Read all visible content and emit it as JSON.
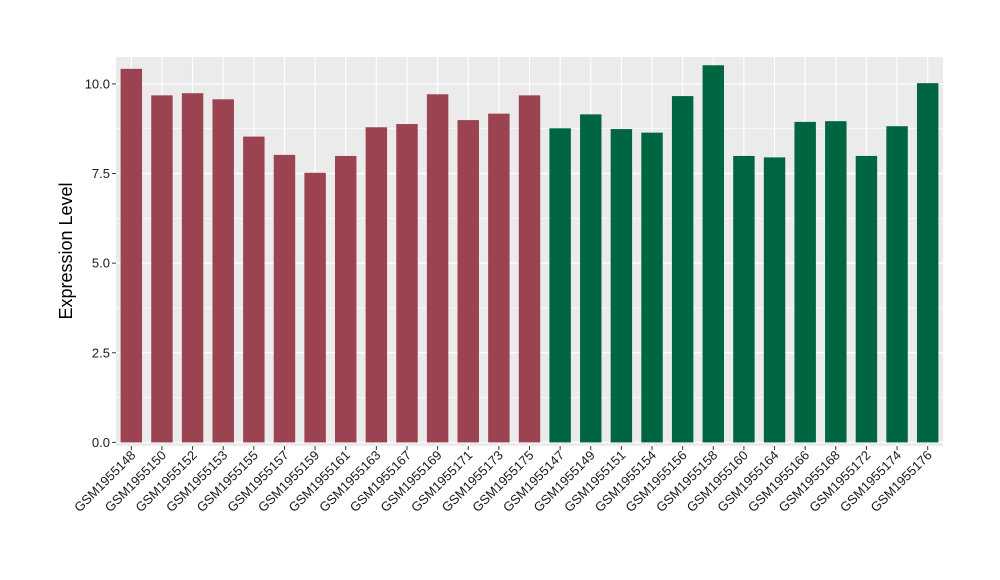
{
  "chart_data": {
    "type": "bar",
    "title": "",
    "xlabel": "",
    "ylabel": "Expression Level",
    "ylim": [
      -0.1,
      10.75
    ],
    "yticks": [
      0.0,
      2.5,
      5.0,
      7.5,
      10.0
    ],
    "ytick_labels": [
      "0.0",
      "2.5",
      "5.0",
      "7.5",
      "10.0"
    ],
    "grid": true,
    "legend": "none",
    "background": "#ebebeb",
    "gridline_color": "#ffffff",
    "categories": [
      "GSM1955148",
      "GSM1955150",
      "GSM1955152",
      "GSM1955153",
      "GSM1955155",
      "GSM1955157",
      "GSM1955159",
      "GSM1955161",
      "GSM1955163",
      "GSM1955167",
      "GSM1955169",
      "GSM1955171",
      "GSM1955173",
      "GSM1955175",
      "GSM1955147",
      "GSM1955149",
      "GSM1955151",
      "GSM1955154",
      "GSM1955156",
      "GSM1955158",
      "GSM1955160",
      "GSM1955164",
      "GSM1955166",
      "GSM1955168",
      "GSM1955172",
      "GSM1955174",
      "GSM1955176"
    ],
    "values": [
      10.42,
      9.68,
      9.74,
      9.57,
      8.53,
      8.02,
      7.52,
      7.99,
      8.79,
      8.88,
      9.71,
      8.99,
      9.17,
      9.68,
      8.76,
      9.15,
      8.74,
      8.64,
      9.66,
      10.52,
      7.99,
      7.95,
      8.94,
      8.96,
      7.99,
      8.82,
      10.02
    ],
    "colors": [
      "#9b4350",
      "#9b4350",
      "#9b4350",
      "#9b4350",
      "#9b4350",
      "#9b4350",
      "#9b4350",
      "#9b4350",
      "#9b4350",
      "#9b4350",
      "#9b4350",
      "#9b4350",
      "#9b4350",
      "#9b4350",
      "#006642",
      "#006642",
      "#006642",
      "#006642",
      "#006642",
      "#006642",
      "#006642",
      "#006642",
      "#006642",
      "#006642",
      "#006642",
      "#006642",
      "#006642"
    ]
  }
}
